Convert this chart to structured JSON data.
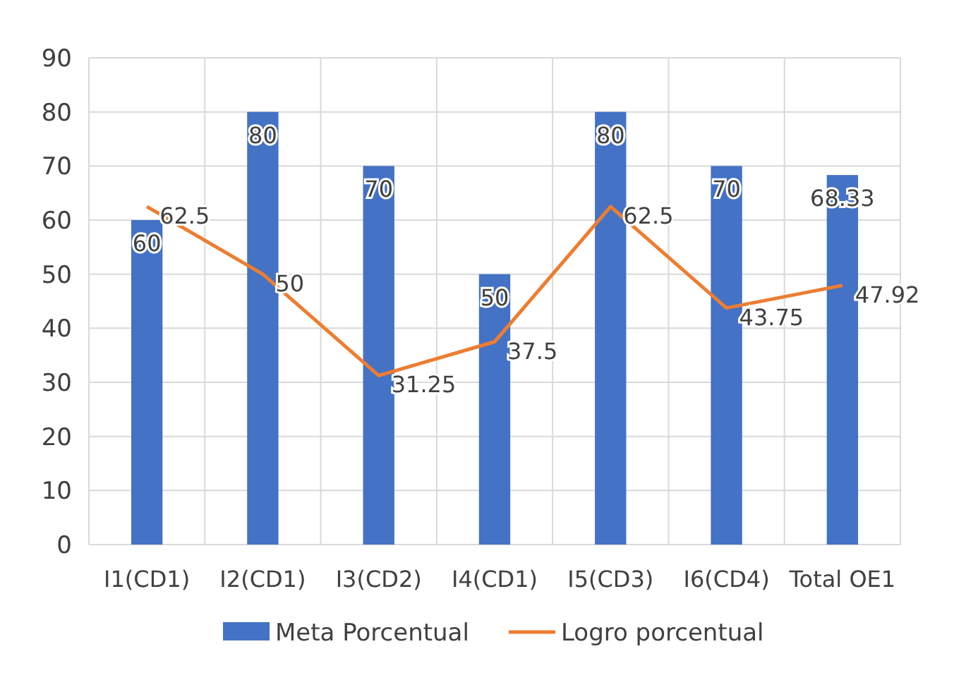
{
  "chart_data": {
    "type": "bar",
    "categories": [
      "I1(CD1)",
      "I2(CD1)",
      "I3(CD2)",
      "I4(CD1)",
      "I5(CD3)",
      "I6(CD4)",
      "Total OE1"
    ],
    "series": [
      {
        "name": "Meta Porcentual",
        "color": "#4472c4",
        "values": [
          60,
          80,
          70,
          50,
          80,
          70,
          68.33
        ]
      },
      {
        "name": "Logro porcentual",
        "type": "line",
        "color": "#ed7d31",
        "values": [
          62.5,
          50,
          31.25,
          37.5,
          62.5,
          43.75,
          47.92
        ]
      }
    ],
    "ylim": [
      0,
      90
    ],
    "yticks": [
      0,
      10,
      20,
      30,
      40,
      50,
      60,
      70,
      80,
      90
    ],
    "grid": true,
    "legend": "bottom",
    "data_labels": true,
    "marker": "none",
    "line_style": "solid"
  }
}
